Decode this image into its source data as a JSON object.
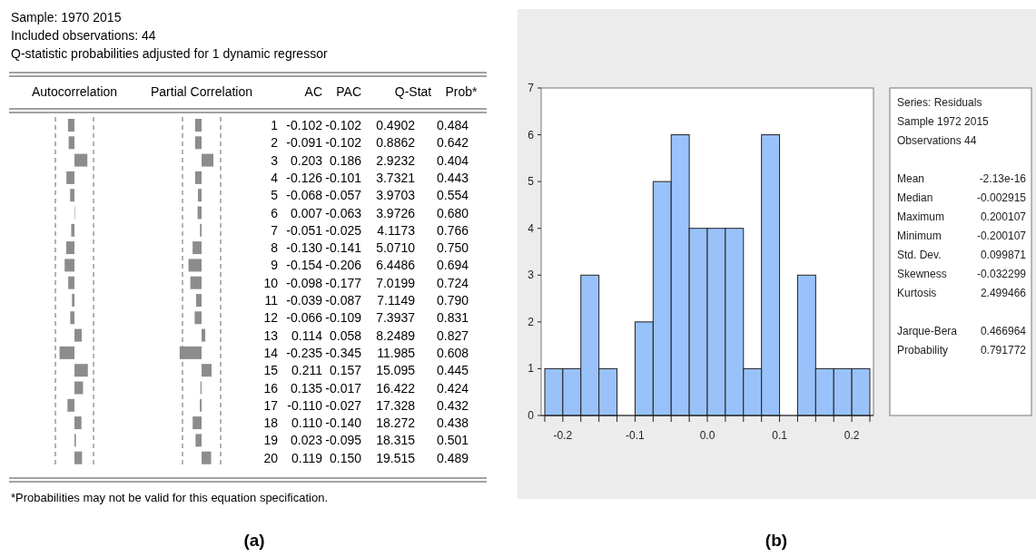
{
  "chart_data": [
    {
      "type": "other",
      "annotations": [
        "Sample: 1970 2015",
        "Included observations: 44",
        "Q-statistic probabilities adjusted for 1 dynamic regressor",
        "*Probabilities may not be valid for this equation specification.",
        "(a)",
        "AC",
        "PAC",
        "Q-Stat",
        "Prob*",
        "0.4902",
        "0.8862",
        "2.9232",
        "3.7321",
        "3.9703",
        "3.9726",
        "4.1173",
        "5.0710",
        "6.4486",
        "7.0199",
        "7.1149",
        "7.3937",
        "8.2489",
        "11.985",
        "15.095",
        "16.422",
        "17.328",
        "18.272",
        "18.315",
        "19.515",
        "0.484",
        "0.642",
        "0.404",
        "0.443",
        "0.554",
        "0.680",
        "0.766",
        "0.750",
        "0.694",
        "0.724",
        "0.790",
        "0.831",
        "0.827",
        "0.608",
        "0.445",
        "0.424",
        "0.432",
        "0.438",
        "0.501",
        "0.489"
      ]
    },
    {
      "type": "bar",
      "orientation": "horizontal",
      "title": "Autocorrelation",
      "color": "#8c8c8c",
      "categories": [
        "1",
        "2",
        "3",
        "4",
        "5",
        "6",
        "7",
        "8",
        "9",
        "10",
        "11",
        "12",
        "13",
        "14",
        "15",
        "16",
        "17",
        "18",
        "19",
        "20"
      ],
      "values": [
        -0.102,
        -0.091,
        0.203,
        -0.126,
        -0.068,
        0.007,
        -0.051,
        -0.13,
        -0.154,
        -0.098,
        -0.039,
        -0.066,
        0.114,
        -0.235,
        0.211,
        0.135,
        -0.11,
        0.11,
        0.023,
        0.119
      ],
      "value_labels": [
        "-0.102",
        "-0.091",
        "0.203",
        "-0.126",
        "-0.068",
        "0.007",
        "-0.051",
        "-0.130",
        "-0.154",
        "-0.098",
        "-0.039",
        "-0.066",
        "0.114",
        "-0.235",
        "0.211",
        "0.135",
        "-0.110",
        "0.110",
        "0.023",
        "0.119"
      ],
      "ref_lines": [
        {
          "axis": "x",
          "value": -0.3,
          "line_style": "dashed"
        },
        {
          "axis": "x",
          "value": 0.3,
          "line_style": "dashed"
        }
      ]
    },
    {
      "type": "bar",
      "orientation": "horizontal",
      "title": "Partial Correlation",
      "color": "#8c8c8c",
      "categories": [
        null,
        null,
        null,
        null,
        null,
        null,
        null,
        null,
        null,
        null,
        null,
        null,
        null,
        null,
        null,
        null,
        null,
        null,
        null,
        null
      ],
      "values": [
        -0.102,
        -0.102,
        0.186,
        -0.101,
        -0.057,
        -0.063,
        -0.025,
        -0.141,
        -0.206,
        -0.177,
        -0.087,
        -0.109,
        0.058,
        -0.345,
        0.157,
        -0.017,
        -0.027,
        -0.14,
        -0.095,
        0.15
      ],
      "value_labels": [
        "-0.102",
        "-0.102",
        "0.186",
        "-0.101",
        "-0.057",
        "-0.063",
        "-0.025",
        "-0.141",
        "-0.206",
        "-0.177",
        "-0.087",
        "-0.109",
        "0.058",
        "-0.345",
        "0.157",
        "-0.017",
        "-0.027",
        "-0.140",
        "-0.095",
        "0.150"
      ],
      "ref_lines": [
        {
          "axis": "x",
          "value": -0.3,
          "line_style": "dashed"
        },
        {
          "axis": "x",
          "value": 0.3,
          "line_style": "dashed"
        }
      ]
    },
    {
      "type": "histogram",
      "bins": [
        -0.225,
        -0.2,
        -0.175,
        -0.15,
        -0.125,
        -0.1,
        -0.075,
        -0.05,
        -0.025,
        0,
        0.025,
        0.05,
        0.075,
        0.1,
        0.125,
        0.15,
        0.175,
        0.2,
        0.225
      ],
      "values": [
        1,
        1,
        3,
        1,
        0,
        2,
        5,
        6,
        4,
        4,
        4,
        1,
        6,
        0,
        3,
        1,
        1,
        1
      ],
      "color": "#99c2fa",
      "xlim": [
        -0.23,
        0.23
      ],
      "xticks": [
        {
          "value": -0.225,
          "label": null
        },
        -0.2,
        {
          "value": -0.175,
          "label": null
        },
        {
          "value": -0.15,
          "label": null
        },
        {
          "value": -0.125,
          "label": null
        },
        -0.1,
        {
          "value": -0.075,
          "label": null
        },
        {
          "value": -0.05,
          "label": null
        },
        {
          "value": -0.025,
          "label": null
        },
        {
          "value": 0,
          "label": "0.0"
        },
        {
          "value": 0.025,
          "label": null
        },
        {
          "value": 0.05,
          "label": null
        },
        {
          "value": 0.075,
          "label": null
        },
        0.1,
        {
          "value": 0.125,
          "label": null
        },
        {
          "value": 0.15,
          "label": null
        },
        {
          "value": 0.175,
          "label": null
        },
        0.2,
        {
          "value": 0.225,
          "label": null
        }
      ],
      "ylim": [
        0,
        7
      ],
      "yticks": [
        0,
        1,
        2,
        3,
        4,
        5,
        6,
        7
      ],
      "annotations": [
        "Series: Residuals",
        "Sample 1972 2015",
        "Observations 44",
        "Mean -2.13e-16",
        "Median -0.002915",
        "Maximum 0.200107",
        "Minimum -0.200107",
        "Std. Dev. 0.099871",
        "Skewness -0.032299",
        "Kurtosis 2.499466",
        "Jarque-Bera 0.466964",
        "Probability 0.791772",
        "(b)"
      ]
    }
  ]
}
